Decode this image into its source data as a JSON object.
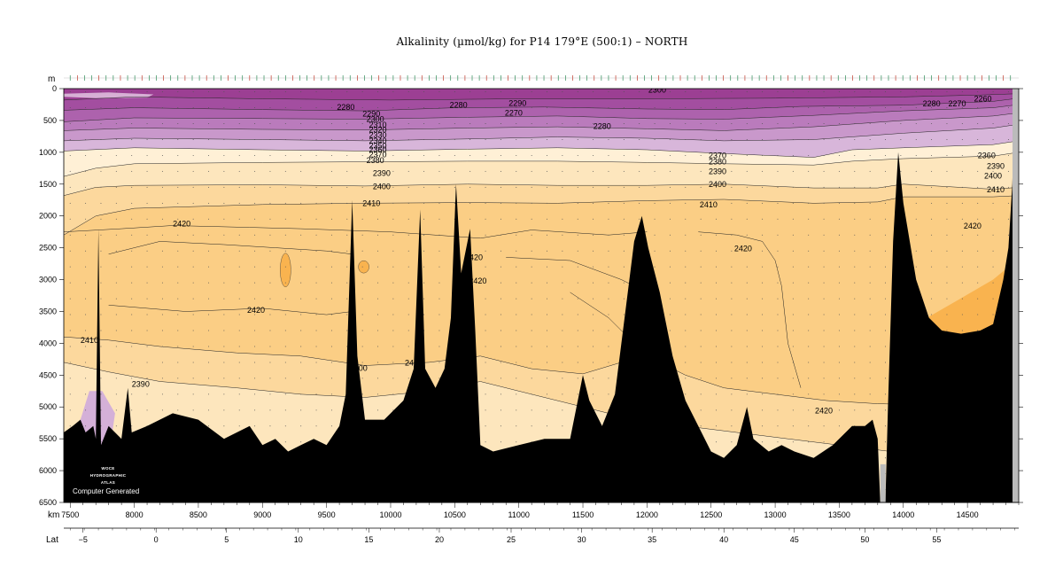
{
  "chart_data": {
    "type": "heatmap",
    "title": "Alkalinity (µmol/kg) for P14 179°E (500:1) – NORTH",
    "y_unit_label": "m",
    "x_unit_label": "km",
    "lat_label": "Lat",
    "y_axis": {
      "range": [
        0,
        6500
      ],
      "inverted": true,
      "ticks": [
        0,
        500,
        1000,
        1500,
        2000,
        2500,
        3000,
        3500,
        4000,
        4500,
        5000,
        5500,
        6000,
        6500
      ]
    },
    "x_axis": {
      "range": [
        7450,
        14900
      ],
      "ticks": [
        7500,
        8000,
        8500,
        9000,
        9500,
        10000,
        10500,
        11000,
        11500,
        12000,
        12500,
        13000,
        13500,
        14000,
        14500
      ]
    },
    "lat_axis": {
      "ticks": [
        {
          "label": "−5",
          "km": 7600
        },
        {
          "label": "0",
          "km": 8170
        },
        {
          "label": "5",
          "km": 8720
        },
        {
          "label": "10",
          "km": 9280
        },
        {
          "label": "15",
          "km": 9830
        },
        {
          "label": "20",
          "km": 10380
        },
        {
          "label": "25",
          "km": 10940
        },
        {
          "label": "30",
          "km": 11490
        },
        {
          "label": "35",
          "km": 12040
        },
        {
          "label": "40",
          "km": 12600
        },
        {
          "label": "45",
          "km": 13150
        },
        {
          "label": "50",
          "km": 13700
        },
        {
          "label": "55",
          "km": 14260
        }
      ]
    },
    "contour_levels": [
      2260,
      2270,
      2280,
      2290,
      2300,
      2310,
      2320,
      2330,
      2340,
      2350,
      2360,
      2370,
      2380,
      2390,
      2400,
      2410,
      2420,
      2430
    ],
    "contour_labels": [
      {
        "text": "2300",
        "x": 12080,
        "y": 20
      },
      {
        "text": "2280",
        "x": 9650,
        "y": 290
      },
      {
        "text": "2280",
        "x": 10530,
        "y": 260
      },
      {
        "text": "2290",
        "x": 10990,
        "y": 230
      },
      {
        "text": "2270",
        "x": 10960,
        "y": 380
      },
      {
        "text": "2280",
        "x": 11650,
        "y": 590
      },
      {
        "text": "2290",
        "x": 9850,
        "y": 400
      },
      {
        "text": "2300",
        "x": 9880,
        "y": 480
      },
      {
        "text": "2310",
        "x": 9900,
        "y": 570
      },
      {
        "text": "2320",
        "x": 9900,
        "y": 650
      },
      {
        "text": "2330",
        "x": 9900,
        "y": 730
      },
      {
        "text": "2340",
        "x": 9900,
        "y": 820
      },
      {
        "text": "2350",
        "x": 9900,
        "y": 900
      },
      {
        "text": "2360",
        "x": 9900,
        "y": 960
      },
      {
        "text": "2370",
        "x": 9900,
        "y": 1040
      },
      {
        "text": "2380",
        "x": 9880,
        "y": 1130
      },
      {
        "text": "2390",
        "x": 9930,
        "y": 1330
      },
      {
        "text": "2400",
        "x": 9930,
        "y": 1540
      },
      {
        "text": "2410",
        "x": 9850,
        "y": 1800
      },
      {
        "text": "2420",
        "x": 8370,
        "y": 2120
      },
      {
        "text": "2420",
        "x": 10650,
        "y": 2650
      },
      {
        "text": "2420",
        "x": 10680,
        "y": 3020
      },
      {
        "text": "2420",
        "x": 8950,
        "y": 3480
      },
      {
        "text": "2410",
        "x": 7650,
        "y": 3950
      },
      {
        "text": "2400",
        "x": 9750,
        "y": 4390
      },
      {
        "text": "2410",
        "x": 10180,
        "y": 4310
      },
      {
        "text": "2390",
        "x": 8050,
        "y": 4640
      },
      {
        "text": "2420",
        "x": 12750,
        "y": 2510
      },
      {
        "text": "2420",
        "x": 13380,
        "y": 5060
      },
      {
        "text": "2400",
        "x": 12550,
        "y": 1500
      },
      {
        "text": "2390",
        "x": 12550,
        "y": 1300
      },
      {
        "text": "2380",
        "x": 12550,
        "y": 1150
      },
      {
        "text": "2370",
        "x": 12550,
        "y": 1050
      },
      {
        "text": "2410",
        "x": 12480,
        "y": 1820
      },
      {
        "text": "2280",
        "x": 14220,
        "y": 240
      },
      {
        "text": "2270",
        "x": 14420,
        "y": 240
      },
      {
        "text": "2260",
        "x": 14620,
        "y": 160
      },
      {
        "text": "2360",
        "x": 14650,
        "y": 1050
      },
      {
        "text": "2390",
        "x": 14720,
        "y": 1220
      },
      {
        "text": "2400",
        "x": 14700,
        "y": 1370
      },
      {
        "text": "2410",
        "x": 14720,
        "y": 1590
      },
      {
        "text": "2420",
        "x": 14540,
        "y": 2160
      }
    ],
    "watermark": [
      "WOCE",
      "HYDROGRAPHIC",
      "ATLAS"
    ],
    "watermark_note": "Computer Generated",
    "colors": {
      "2260": "#9c3f93",
      "2280": "#a34ea0",
      "2300": "#ad62ad",
      "2320": "#ba7bbc",
      "2340": "#c998cb",
      "2360": "#d8b6da",
      "2380": "#fff0d6",
      "2400": "#fde6bd",
      "2410": "#fcd89d",
      "2420": "#fbce85",
      "2430": "#f9b34f",
      "seafloor": "#000000",
      "bottom_violet": "#d4b0d8"
    }
  }
}
